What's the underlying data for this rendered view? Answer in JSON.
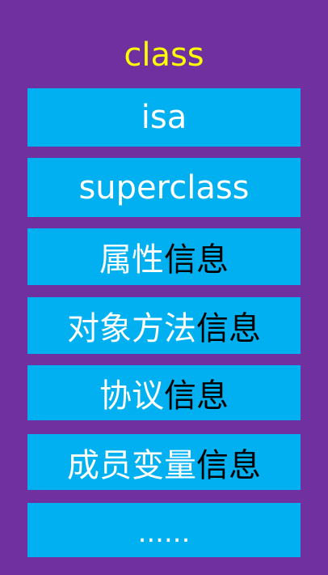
{
  "title": "class",
  "rows": [
    {
      "white": "isa",
      "black": ""
    },
    {
      "white": "superclass",
      "black": ""
    },
    {
      "white": "属性",
      "black": "信息"
    },
    {
      "white": "对象方法",
      "black": "信息"
    },
    {
      "white": "协议",
      "black": "信息"
    },
    {
      "white": "成员变量",
      "black": "信息"
    },
    {
      "white": "......",
      "black": ""
    }
  ],
  "colors": {
    "background": "#7030a0",
    "cell": "#00b0f0",
    "title": "#ffff00",
    "text_light": "#ffffff",
    "text_dark": "#000000"
  }
}
